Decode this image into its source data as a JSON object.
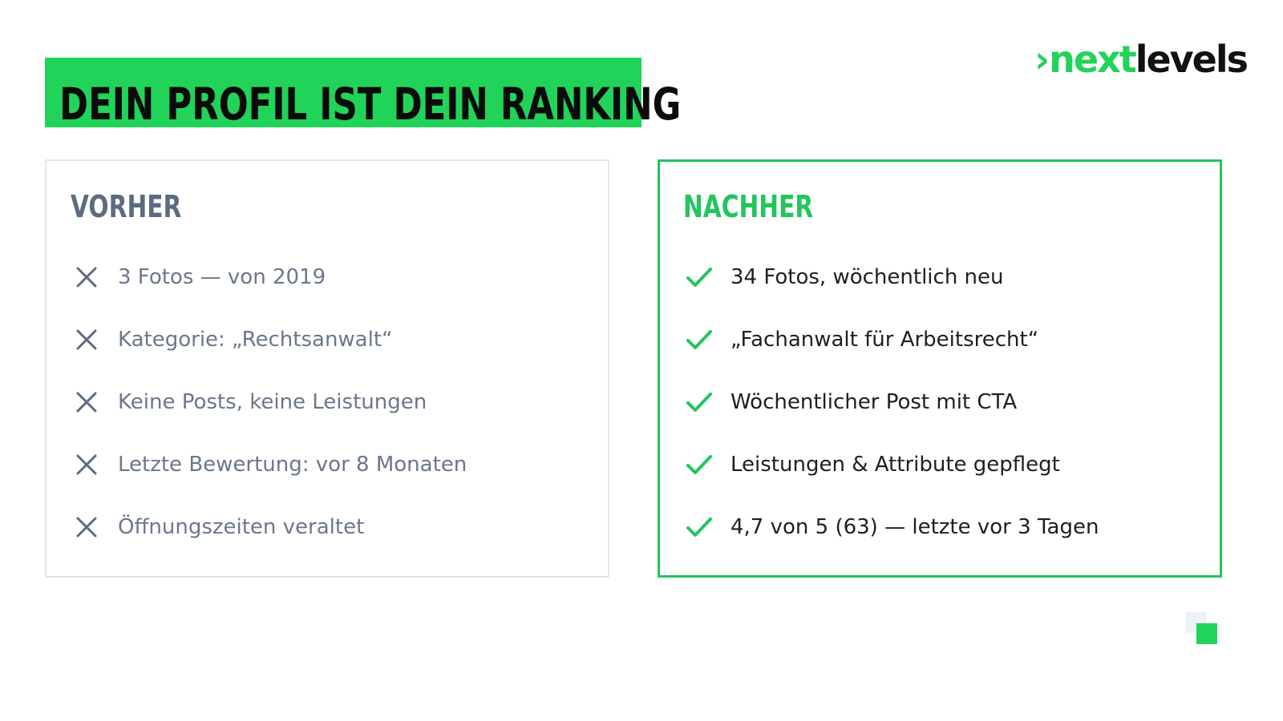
{
  "logo": {
    "chevron": "›",
    "part1": "next",
    "part2": "levels"
  },
  "title": "DEIN PROFIL IST DEIN RANKING",
  "before": {
    "heading": "VORHER",
    "icon": "x-icon",
    "items": [
      "3 Fotos — von 2019",
      "Kategorie: „Rechtsanwalt“",
      "Keine Posts, keine Leistungen",
      "Letzte Bewertung: vor 8 Monaten",
      "Öffnungszeiten veraltet"
    ]
  },
  "after": {
    "heading": "NACHHER",
    "icon": "check-icon",
    "items": [
      "34 Fotos, wöchentlich neu",
      "„Fachanwalt für Arbeitsrecht“",
      "Wöchentlicher Post mit CTA",
      "Leistungen & Attribute gepflegt",
      "4,7 von 5 (63) — letzte vor 3 Tagen"
    ]
  },
  "colors": {
    "accent_green": "#22d35a",
    "muted_slate": "#5d6b80",
    "text_dark": "#1f1f1f"
  }
}
